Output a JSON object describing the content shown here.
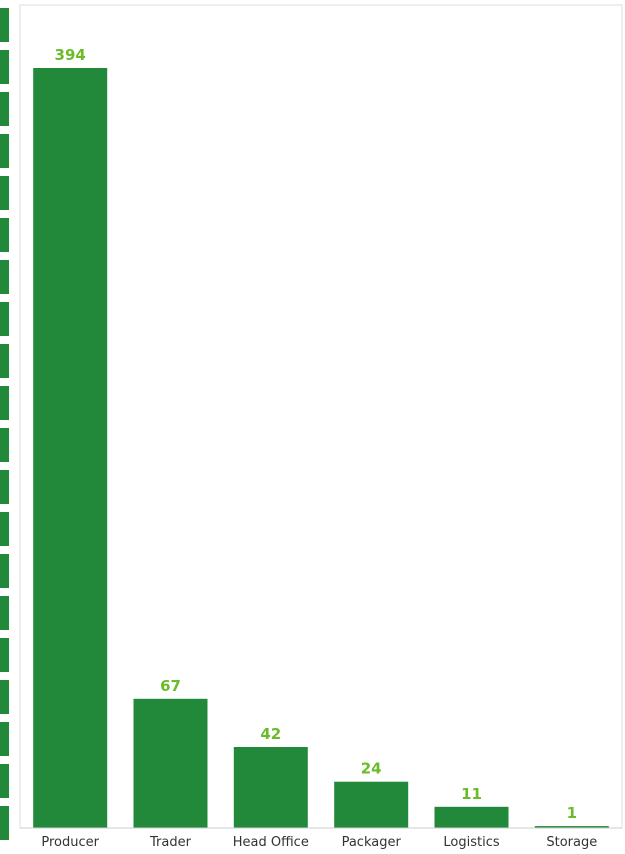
{
  "chart_data": {
    "type": "bar",
    "categories": [
      "Producer",
      "Trader",
      "Head Office",
      "Packager",
      "Logistics",
      "Storage"
    ],
    "values": [
      394,
      67,
      42,
      24,
      11,
      1
    ],
    "title": "",
    "xlabel": "",
    "ylabel": "",
    "ylim": [
      0,
      394
    ],
    "grid": false,
    "colors": {
      "bar": "#22883a",
      "value_label": "#6cbb2a",
      "axis_text": "#333333",
      "frame": "#dddddd",
      "left_strip": "#22883a"
    }
  }
}
